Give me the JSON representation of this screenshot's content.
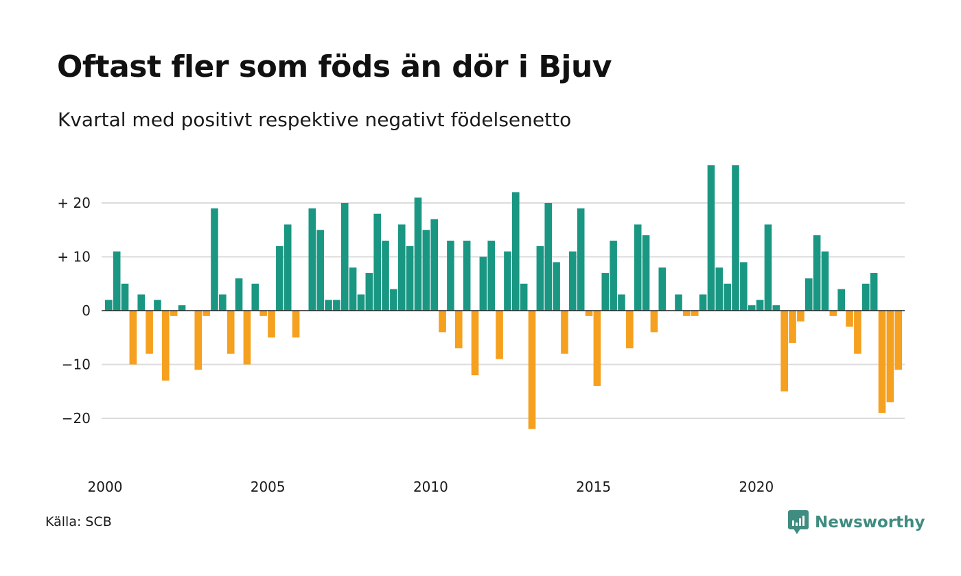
{
  "title": "Oftast fler som föds än dör i Bjuv",
  "subtitle": "Kvartal med positivt respektive negativt födelsenetto",
  "source": "Källa: SCB",
  "brand": "Newsworthy",
  "colors": {
    "positive": "#1a9782",
    "negative": "#f5a01e",
    "grid": "#dcdcdc",
    "brand": "#3f8c80"
  },
  "chart_data": {
    "type": "bar",
    "title": "Oftast fler som föds än dör i Bjuv",
    "subtitle": "Kvartal med positivt respektive negativt födelsenetto",
    "xlabel": "",
    "ylabel": "",
    "ylim": [
      -25,
      28
    ],
    "y_ticks": [
      {
        "value": 20,
        "label": "+ 20"
      },
      {
        "value": 10,
        "label": "+ 10"
      },
      {
        "value": 0,
        "label": "0"
      },
      {
        "value": -10,
        "label": "−10"
      },
      {
        "value": -20,
        "label": "−20"
      }
    ],
    "x_ticks": [
      {
        "label": "2000",
        "index": 0
      },
      {
        "label": "2005",
        "index": 20
      },
      {
        "label": "2010",
        "index": 40
      },
      {
        "label": "2015",
        "index": 60
      },
      {
        "label": "2020",
        "index": 80
      }
    ],
    "start_period": "2000 Q1",
    "end_period": "2024 Q3",
    "grid": true,
    "values": [
      2,
      11,
      5,
      -10,
      3,
      -8,
      2,
      -13,
      -1,
      1,
      0,
      -11,
      -1,
      19,
      3,
      -8,
      6,
      -10,
      5,
      -1,
      -5,
      12,
      16,
      -5,
      0,
      19,
      15,
      2,
      2,
      20,
      8,
      3,
      7,
      18,
      13,
      4,
      16,
      12,
      21,
      15,
      17,
      -4,
      13,
      -7,
      13,
      -12,
      10,
      13,
      -9,
      11,
      22,
      5,
      -22,
      12,
      20,
      9,
      -8,
      11,
      19,
      -1,
      -14,
      7,
      13,
      3,
      -7,
      16,
      14,
      -4,
      8,
      0,
      3,
      -1,
      -1,
      3,
      27,
      8,
      5,
      27,
      9,
      1,
      2,
      16,
      1,
      -15,
      -6,
      -2,
      6,
      14,
      11,
      -1,
      4,
      -3,
      -8,
      5,
      7,
      -19,
      -17,
      -11
    ]
  }
}
